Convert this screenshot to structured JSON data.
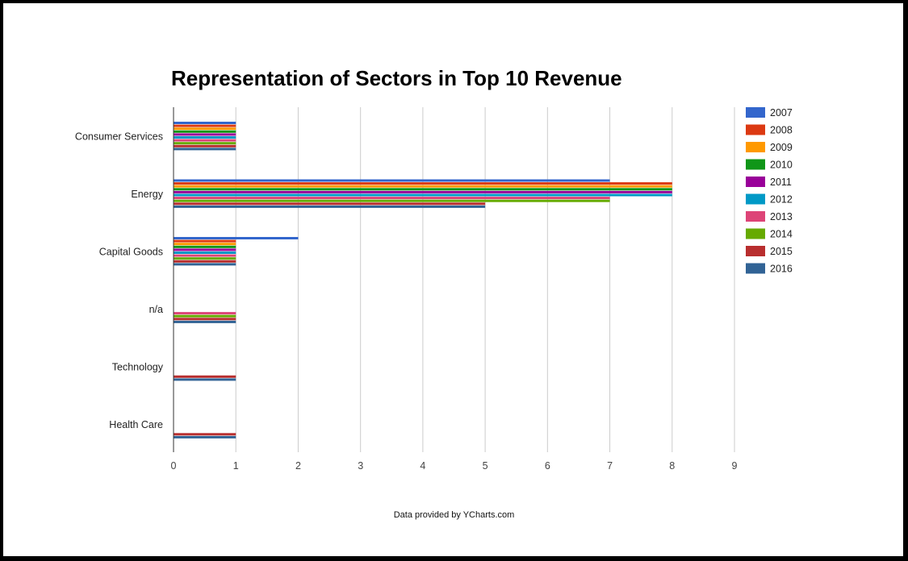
{
  "title": "Representation of Sectors in Top 10 Revenue",
  "footer": "Data provided by YCharts.com",
  "chart_data": {
    "type": "bar",
    "orientation": "horizontal",
    "title": "Representation of Sectors in Top 10 Revenue",
    "xlabel": "",
    "ylabel": "",
    "xlim": [
      0,
      9
    ],
    "xticks": [
      0,
      1,
      2,
      3,
      4,
      5,
      6,
      7,
      8,
      9
    ],
    "grid": true,
    "legend_position": "right",
    "categories": [
      "Consumer Services",
      "Energy",
      "Capital Goods",
      "n/a",
      "Technology",
      "Health Care"
    ],
    "series": [
      {
        "name": "2007",
        "color": "#3366cc",
        "values": [
          1,
          7,
          2,
          0,
          0,
          0
        ]
      },
      {
        "name": "2008",
        "color": "#dc3912",
        "values": [
          1,
          8,
          1,
          0,
          0,
          0
        ]
      },
      {
        "name": "2009",
        "color": "#ff9900",
        "values": [
          1,
          8,
          1,
          0,
          0,
          0
        ]
      },
      {
        "name": "2010",
        "color": "#109618",
        "values": [
          1,
          8,
          1,
          0,
          0,
          0
        ]
      },
      {
        "name": "2011",
        "color": "#990099",
        "values": [
          1,
          8,
          1,
          0,
          0,
          0
        ]
      },
      {
        "name": "2012",
        "color": "#0099c6",
        "values": [
          1,
          8,
          1,
          0,
          0,
          0
        ]
      },
      {
        "name": "2013",
        "color": "#dd4477",
        "values": [
          1,
          7,
          1,
          1,
          0,
          0
        ]
      },
      {
        "name": "2014",
        "color": "#66aa00",
        "values": [
          1,
          7,
          1,
          1,
          0,
          0
        ]
      },
      {
        "name": "2015",
        "color": "#b82e2e",
        "values": [
          1,
          5,
          1,
          1,
          1,
          1
        ]
      },
      {
        "name": "2016",
        "color": "#316395",
        "values": [
          1,
          5,
          1,
          1,
          1,
          1
        ]
      }
    ]
  }
}
